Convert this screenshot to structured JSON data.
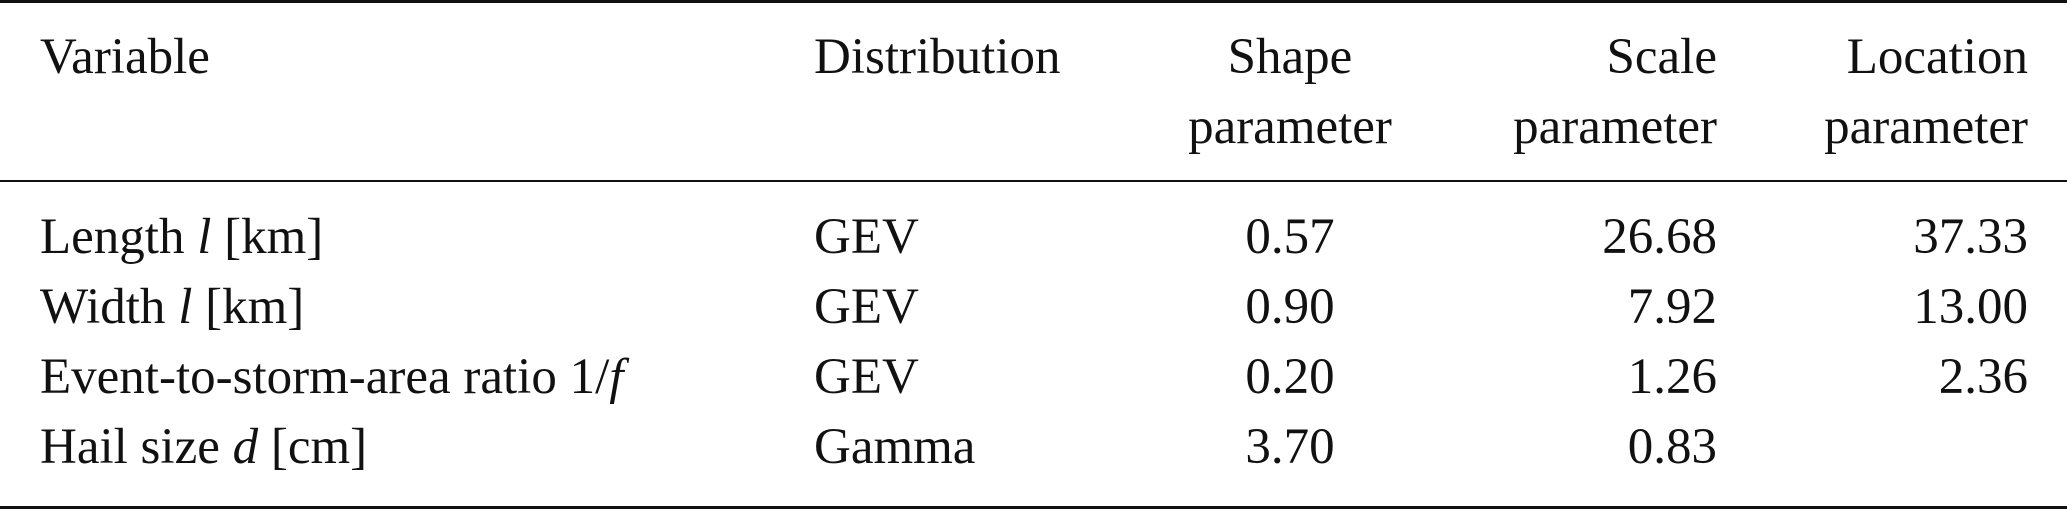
{
  "table": {
    "headers": {
      "variable": "Variable",
      "distribution": "Distribution",
      "shape_line1": "Shape",
      "shape_line2": "parameter",
      "scale_line1": "Scale",
      "scale_line2": "parameter",
      "location_line1": "Location",
      "location_line2": "parameter"
    },
    "rows": [
      {
        "var_prefix": "Length ",
        "var_symbol": "l",
        "var_suffix": " [km]",
        "distribution": "GEV",
        "shape": "0.57",
        "scale": "26.68",
        "location": "37.33"
      },
      {
        "var_prefix": "Width ",
        "var_symbol": "l",
        "var_suffix": " [km]",
        "distribution": "GEV",
        "shape": "0.90",
        "scale": "7.92",
        "location": "13.00"
      },
      {
        "var_prefix": "Event-to-storm-area ratio 1/",
        "var_symbol": "f",
        "var_suffix": "",
        "distribution": "GEV",
        "shape": "0.20",
        "scale": "1.26",
        "location": "2.36"
      },
      {
        "var_prefix": "Hail size ",
        "var_symbol": "d",
        "var_suffix": " [cm]",
        "distribution": "Gamma",
        "shape": "3.70",
        "scale": "0.83",
        "location": ""
      }
    ]
  }
}
